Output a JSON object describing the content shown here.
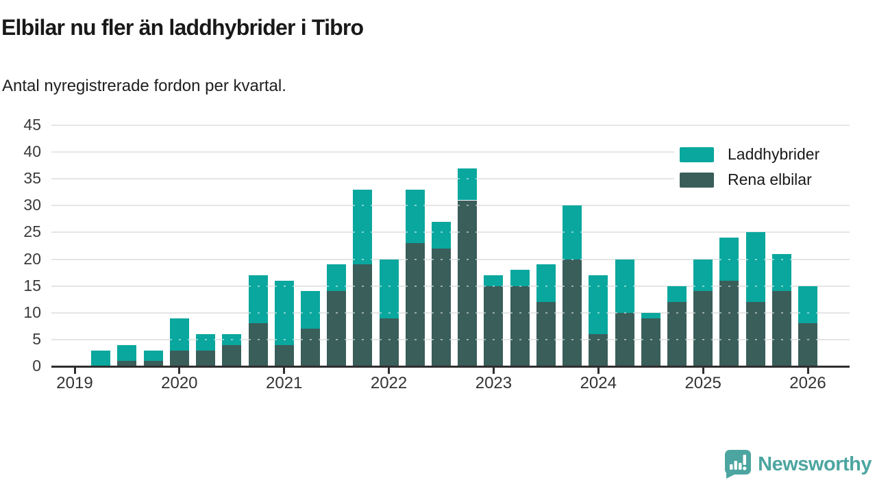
{
  "header": {
    "title": "Elbilar nu fler än laddhybrider i Tibro",
    "subtitle": "Antal nyregistrerade fordon per kvartal."
  },
  "colors": {
    "laddhybrider": "#0aa79e",
    "rena_elbilar": "#3a5e5a",
    "axis": "#2e2e2e",
    "grid": "#e5e5e5",
    "brand": "#4ca5a0"
  },
  "legend": {
    "items": [
      {
        "label": "Laddhybrider",
        "color_key": "laddhybrider"
      },
      {
        "label": "Rena elbilar",
        "color_key": "rena_elbilar"
      }
    ]
  },
  "chart_data": {
    "type": "bar",
    "stacked": true,
    "title": "Elbilar nu fler än laddhybrider i Tibro",
    "subtitle": "Antal nyregistrerade fordon per kvartal.",
    "xlabel": "",
    "ylabel": "",
    "ylim": [
      0,
      45
    ],
    "yticks": [
      0,
      5,
      10,
      15,
      20,
      25,
      30,
      35,
      40,
      45
    ],
    "grid": true,
    "legend_position": "top-right",
    "x_tick_labels": [
      "2019",
      "2020",
      "2021",
      "2022",
      "2023",
      "2024",
      "2025",
      "2026"
    ],
    "categories": [
      "2019-Q2",
      "2019-Q3",
      "2019-Q4",
      "2020-Q1",
      "2020-Q2",
      "2020-Q3",
      "2020-Q4",
      "2021-Q1",
      "2021-Q2",
      "2021-Q3",
      "2021-Q4",
      "2022-Q1",
      "2022-Q2",
      "2022-Q3",
      "2022-Q4",
      "2023-Q1",
      "2023-Q2",
      "2023-Q3",
      "2023-Q4",
      "2024-Q1",
      "2024-Q2",
      "2024-Q3",
      "2024-Q4",
      "2025-Q1",
      "2025-Q2",
      "2025-Q3",
      "2025-Q4",
      "2026-Q1"
    ],
    "series": [
      {
        "name": "Rena elbilar",
        "values": [
          0,
          1,
          1,
          3,
          3,
          4,
          8,
          4,
          7,
          14,
          19,
          9,
          23,
          22,
          31,
          15,
          15,
          12,
          20,
          6,
          10,
          9,
          12,
          14,
          16,
          12,
          14,
          8
        ]
      },
      {
        "name": "Laddhybrider",
        "values": [
          3,
          3,
          2,
          6,
          3,
          2,
          9,
          12,
          7,
          5,
          14,
          11,
          10,
          5,
          6,
          2,
          3,
          7,
          10,
          11,
          10,
          1,
          3,
          6,
          8,
          13,
          7,
          7
        ]
      }
    ]
  },
  "footer": {
    "brand": "Newsworthy"
  }
}
